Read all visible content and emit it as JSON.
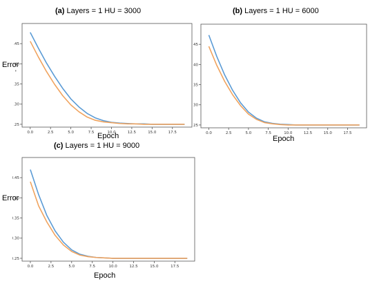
{
  "chart_data": [
    {
      "type": "line",
      "panel_letter": "(a)",
      "title": "Layers = 1 HU = 3000",
      "xlabel": "Epoch",
      "ylabel": "Error",
      "ylabel_mark": "'",
      "xlim": [
        -1,
        19.9
      ],
      "ylim": [
        0.243,
        0.5
      ],
      "xticks": [
        0.0,
        2.5,
        5.0,
        7.5,
        10.0,
        12.5,
        15.0,
        17.5
      ],
      "xtick_labels": [
        "0.0",
        "2.5",
        "5.0",
        "7.5",
        "10.0",
        "12.5",
        "15.0",
        "17.5"
      ],
      "yticks": [
        0.25,
        0.3,
        0.35,
        0.4,
        0.45
      ],
      "ytick_labels": [
        "0.25",
        "0.30",
        "0.35",
        "0.40",
        "0.45"
      ],
      "x": [
        0,
        1,
        2,
        3,
        4,
        5,
        6,
        7,
        8,
        9,
        10,
        11,
        12,
        13,
        14,
        15,
        16,
        17,
        18,
        19
      ],
      "series": [
        {
          "color": "#5b9bd5",
          "values": [
            0.478,
            0.439,
            0.402,
            0.369,
            0.339,
            0.313,
            0.293,
            0.277,
            0.266,
            0.259,
            0.255,
            0.253,
            0.252,
            0.251,
            0.251,
            0.25,
            0.25,
            0.25,
            0.25,
            0.25
          ]
        },
        {
          "color": "#f0a35e",
          "values": [
            0.456,
            0.417,
            0.381,
            0.349,
            0.321,
            0.298,
            0.281,
            0.268,
            0.26,
            0.256,
            0.254,
            0.252,
            0.251,
            0.251,
            0.25,
            0.25,
            0.25,
            0.25,
            0.25,
            0.25
          ]
        }
      ]
    },
    {
      "type": "line",
      "panel_letter": "(b)",
      "title": "Layers = 1 HU = 6000",
      "xlabel": "Epoch",
      "ylabel": "",
      "ylabel_mark": "",
      "xlim": [
        -1,
        19.9
      ],
      "ylim": [
        0.243,
        0.5
      ],
      "xticks": [
        0.0,
        2.5,
        5.0,
        7.5,
        10.0,
        12.5,
        15.0,
        17.5
      ],
      "xtick_labels": [
        "0.0",
        "2.5",
        "5.0",
        "7.5",
        "10.0",
        "12.5",
        "15.0",
        "17.5"
      ],
      "yticks": [
        0.25,
        0.3,
        0.35,
        0.4,
        0.45
      ],
      "ytick_labels": [
        "0.25",
        "0.30",
        "0.35",
        "0.40",
        "0.45"
      ],
      "x": [
        0,
        1,
        2,
        3,
        4,
        5,
        6,
        7,
        8,
        9,
        10,
        11,
        12,
        13,
        14,
        15,
        16,
        17,
        18,
        19
      ],
      "series": [
        {
          "color": "#5b9bd5",
          "values": [
            0.473,
            0.42,
            0.374,
            0.336,
            0.305,
            0.282,
            0.267,
            0.258,
            0.254,
            0.252,
            0.251,
            0.25,
            0.25,
            0.25,
            0.25,
            0.25,
            0.25,
            0.25,
            0.25,
            0.25
          ]
        },
        {
          "color": "#f0a35e",
          "values": [
            0.445,
            0.398,
            0.358,
            0.325,
            0.298,
            0.277,
            0.264,
            0.256,
            0.253,
            0.251,
            0.25,
            0.25,
            0.25,
            0.25,
            0.25,
            0.25,
            0.25,
            0.25,
            0.25,
            0.25
          ]
        }
      ]
    },
    {
      "type": "line",
      "panel_letter": "(c)",
      "title": "Layers = 1 HU = 9000",
      "xlabel": "Epoch",
      "ylabel": "Error",
      "ylabel_mark": "",
      "xlim": [
        -1,
        19.9
      ],
      "ylim": [
        0.243,
        0.5
      ],
      "xticks": [
        0.0,
        2.5,
        5.0,
        7.5,
        10.0,
        12.5,
        15.0,
        17.5
      ],
      "xtick_labels": [
        "0.0",
        "2.5",
        "5.0",
        "7.5",
        "10.0",
        "12.5",
        "15.0",
        "17.5"
      ],
      "yticks": [
        0.25,
        0.3,
        0.35,
        0.4,
        0.45
      ],
      "ytick_labels": [
        "0.25",
        "0.30",
        "0.35",
        "0.40",
        "0.45"
      ],
      "x": [
        0,
        1,
        2,
        3,
        4,
        5,
        6,
        7,
        8,
        9,
        10,
        11,
        12,
        13,
        14,
        15,
        16,
        17,
        18,
        19
      ],
      "series": [
        {
          "color": "#5b9bd5",
          "values": [
            0.47,
            0.408,
            0.356,
            0.318,
            0.29,
            0.271,
            0.26,
            0.255,
            0.252,
            0.251,
            0.25,
            0.25,
            0.25,
            0.25,
            0.25,
            0.25,
            0.25,
            0.25,
            0.25,
            0.25
          ]
        },
        {
          "color": "#f0a35e",
          "values": [
            0.44,
            0.38,
            0.34,
            0.307,
            0.283,
            0.267,
            0.258,
            0.254,
            0.252,
            0.251,
            0.25,
            0.25,
            0.25,
            0.25,
            0.25,
            0.25,
            0.25,
            0.25,
            0.25,
            0.25
          ]
        }
      ]
    }
  ]
}
